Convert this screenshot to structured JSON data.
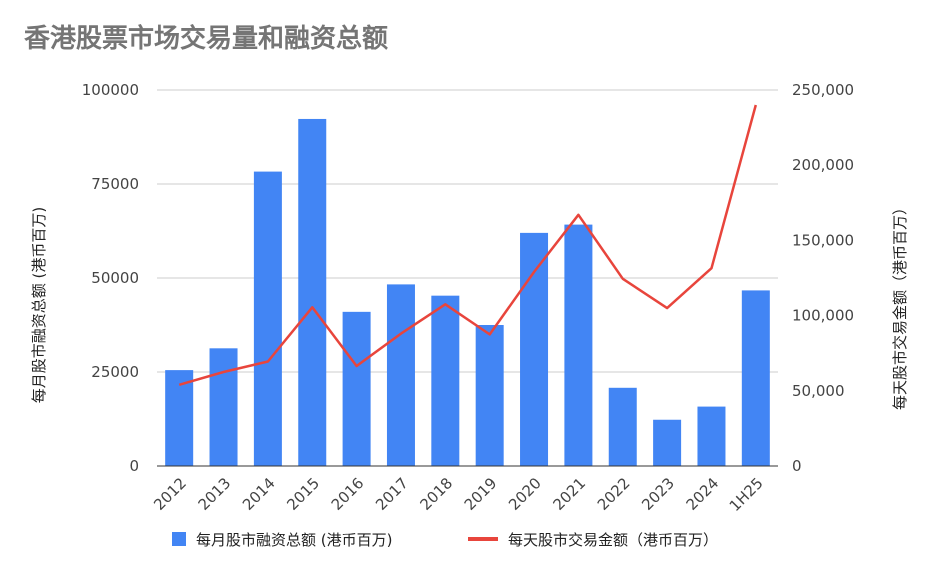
{
  "chart_data": {
    "type": "bar",
    "title": "香港股票市场交易量和融资总额",
    "categories": [
      "2012",
      "2013",
      "2014",
      "2015",
      "2016",
      "2017",
      "2018",
      "2019",
      "2020",
      "2021",
      "2022",
      "2023",
      "2024",
      "1H25"
    ],
    "series": [
      {
        "name": "每月股市融资总额 (港币百万)",
        "type": "bar",
        "axis": "left",
        "color": "#4285f4",
        "values": [
          25500,
          31300,
          78300,
          92300,
          41000,
          48300,
          45300,
          37500,
          62000,
          64200,
          20800,
          12300,
          15800,
          46700
        ]
      },
      {
        "name": "每天股市交易金额（港币百万）",
        "type": "line",
        "axis": "right",
        "color": "#e8453c",
        "values": [
          54000,
          62500,
          69500,
          105500,
          66500,
          88000,
          107500,
          87500,
          129000,
          167000,
          124500,
          105000,
          131500,
          240000
        ]
      }
    ],
    "ylabel": "每月股市融资总额 (港币百万)",
    "y2label": "每天股市交易金额（港币百万）",
    "ylim": [
      0,
      100000
    ],
    "y2lim": [
      0,
      250000
    ],
    "yticks": [
      "0",
      "25000",
      "50000",
      "75000",
      "100000"
    ],
    "y2ticks": [
      "0",
      "50,000",
      "100,000",
      "150,000",
      "200,000",
      "250,000"
    ],
    "grid": true,
    "legend": "bottom"
  }
}
